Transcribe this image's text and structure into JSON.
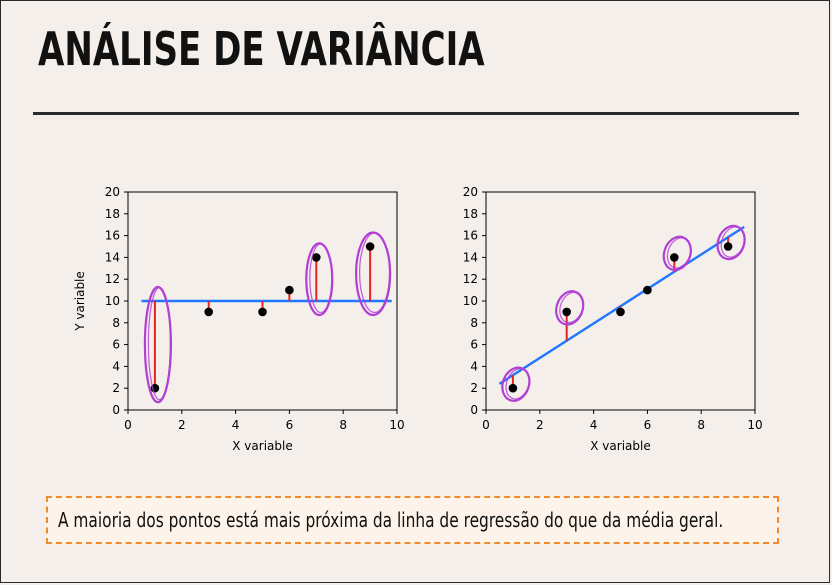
{
  "title": "ANÁLISE DE VARIÂNCIA",
  "note": "A maioria dos pontos está mais próxima da linha de regressão do que da média geral.",
  "colors": {
    "line": "#1f78ff",
    "residual": "#e8241c",
    "point": "#000000",
    "circle": "#b23fd3",
    "note_border": "#f08a2a"
  },
  "chart_data": [
    {
      "type": "scatter",
      "xlabel": "X variable",
      "ylabel": "Y variable",
      "xlim": [
        0,
        10
      ],
      "ylim": [
        0,
        20
      ],
      "xticks": [
        0,
        2,
        4,
        6,
        8,
        10
      ],
      "yticks": [
        0,
        2,
        4,
        6,
        8,
        10,
        12,
        14,
        16,
        18,
        20
      ],
      "points": [
        {
          "x": 1,
          "y": 2
        },
        {
          "x": 3,
          "y": 9
        },
        {
          "x": 5,
          "y": 9
        },
        {
          "x": 6,
          "y": 11
        },
        {
          "x": 7,
          "y": 14
        },
        {
          "x": 9,
          "y": 15
        }
      ],
      "reference_line": {
        "kind": "mean",
        "y": 10,
        "x_range": [
          0.5,
          9.8
        ]
      },
      "circled_points": [
        0,
        4,
        5
      ]
    },
    {
      "type": "scatter",
      "xlabel": "X variable",
      "ylabel": "",
      "xlim": [
        0,
        10
      ],
      "ylim": [
        0,
        20
      ],
      "xticks": [
        0,
        2,
        4,
        6,
        8,
        10
      ],
      "yticks": [
        0,
        2,
        4,
        6,
        8,
        10,
        12,
        14,
        16,
        18,
        20
      ],
      "points": [
        {
          "x": 1,
          "y": 2
        },
        {
          "x": 3,
          "y": 9
        },
        {
          "x": 5,
          "y": 9
        },
        {
          "x": 6,
          "y": 11
        },
        {
          "x": 7,
          "y": 14
        },
        {
          "x": 9,
          "y": 15
        }
      ],
      "reference_line": {
        "kind": "regression",
        "x1": 0.5,
        "y1": 2.4,
        "x2": 9.6,
        "y2": 16.8
      },
      "circled_points": [
        0,
        1,
        4,
        5
      ]
    }
  ]
}
